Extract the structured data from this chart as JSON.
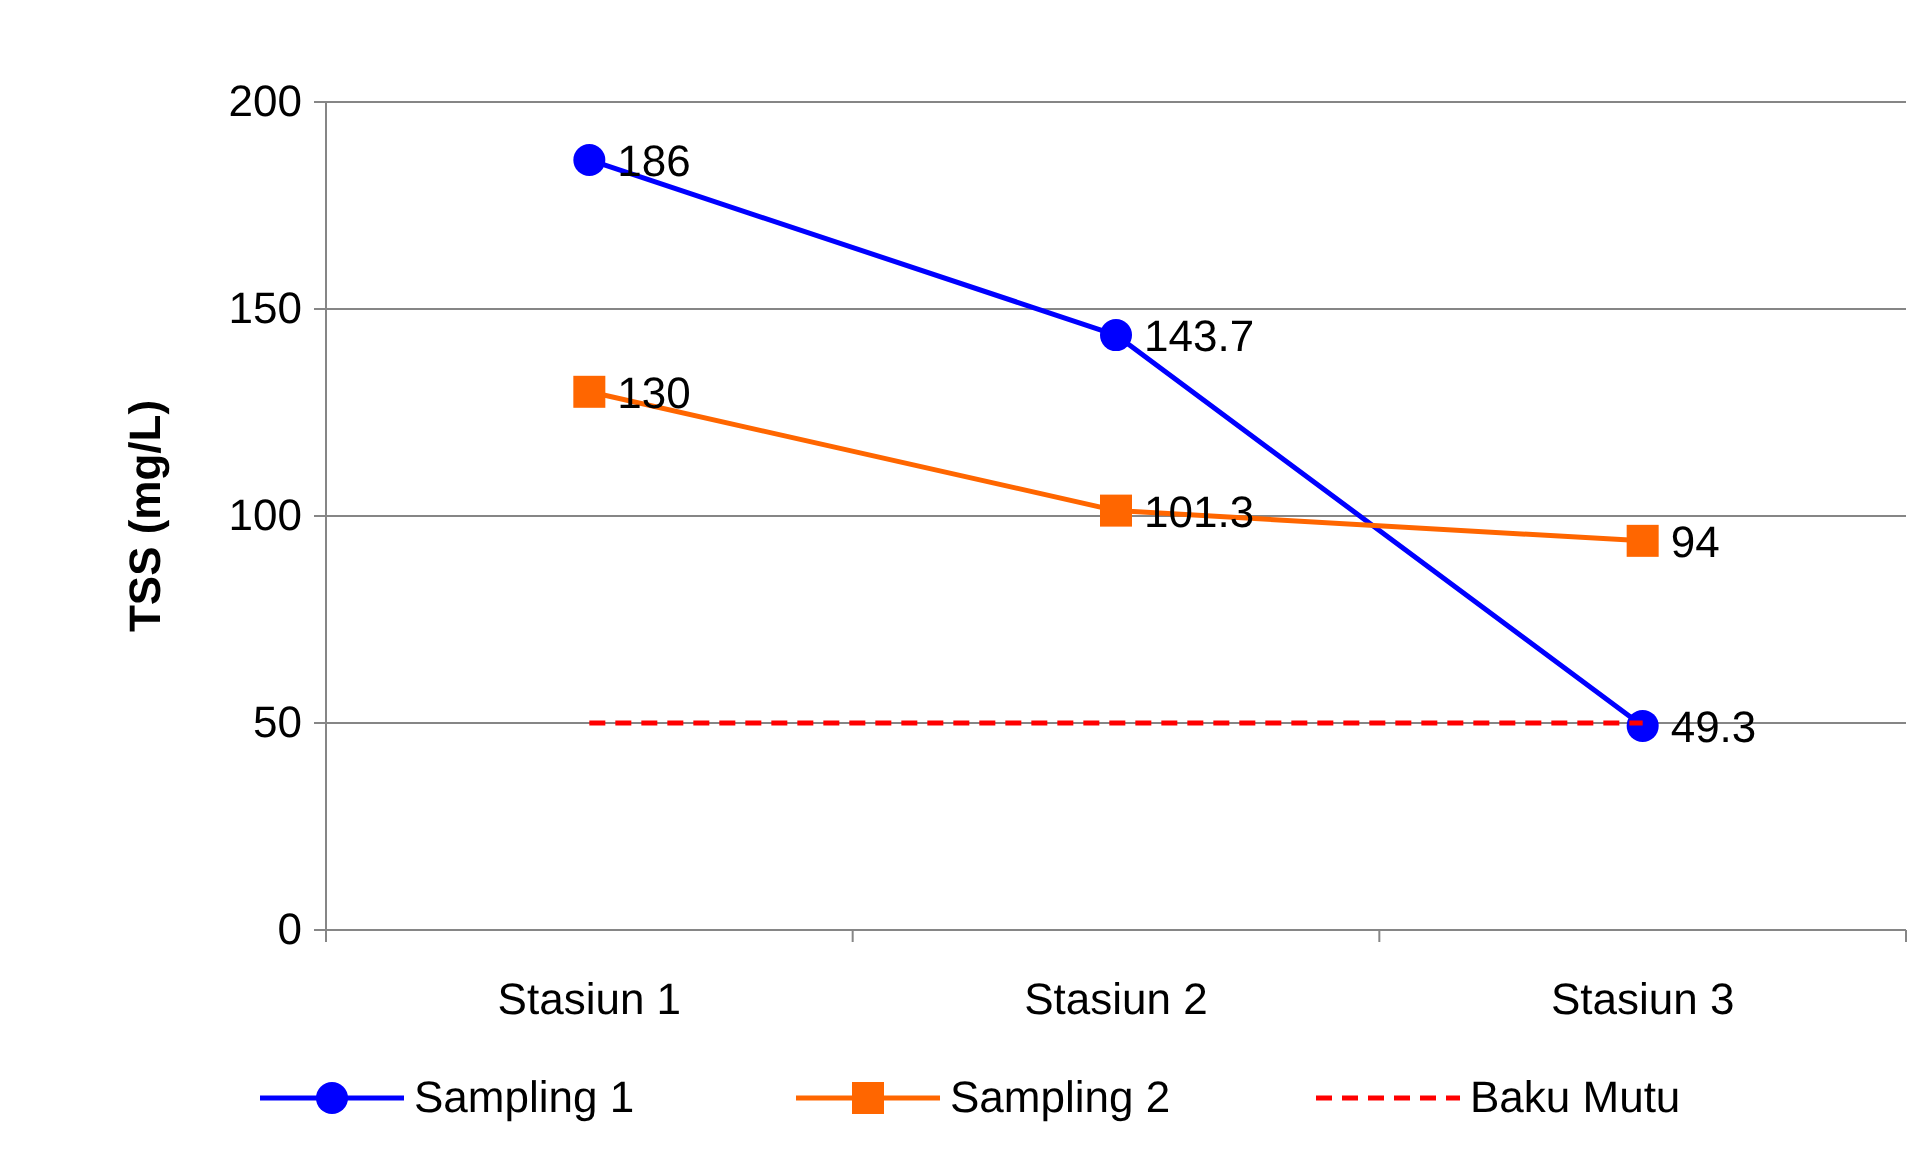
{
  "chart_data": {
    "type": "line",
    "ylabel": "TSS (mg/L)",
    "categories": [
      "Stasiun 1",
      "Stasiun 2",
      "Stasiun 3"
    ],
    "series": [
      {
        "name": "Sampling 1",
        "color": "#0000ff",
        "values": [
          186,
          143.7,
          49.3
        ],
        "marker": "circle",
        "value_labels": [
          "186",
          "143.7",
          "49.3"
        ]
      },
      {
        "name": "Sampling 2",
        "color": "#ff6600",
        "values": [
          130,
          101.3,
          94
        ],
        "marker": "square",
        "value_labels": [
          "130",
          "101.3",
          "94"
        ]
      },
      {
        "name": "Baku Mutu",
        "color": "#ff0000",
        "values": [
          50,
          50,
          50
        ],
        "marker": "none",
        "line_style": "dashed"
      }
    ],
    "ylim": [
      0,
      200
    ],
    "yticks": [
      0,
      50,
      100,
      150,
      200
    ],
    "grid": "y",
    "legend": "bottom"
  }
}
